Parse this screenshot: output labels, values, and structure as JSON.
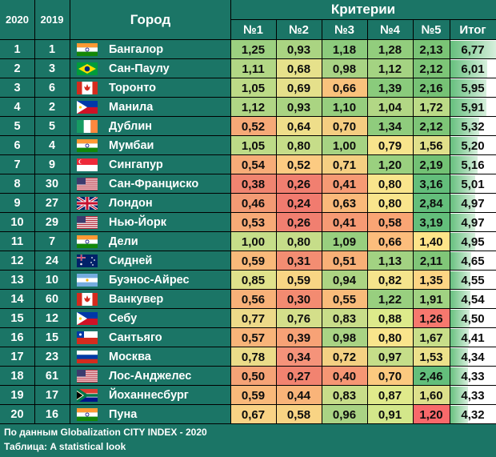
{
  "chart_data": {
    "type": "table",
    "headers": {
      "rank_2020": "2020",
      "rank_2019": "2019",
      "city": "Город",
      "criteria_group": "Критерии",
      "criteria": [
        "№1",
        "№2",
        "№3",
        "№4",
        "№5"
      ],
      "total": "Итог"
    },
    "rows": [
      {
        "r2020": "1",
        "r2019": "1",
        "flag": "india-flag",
        "city": "Бангалор",
        "c": [
          "1,25",
          "0,93",
          "1,18",
          "1,28",
          "2,13"
        ],
        "total": "6,77",
        "colors": [
          "#9cd080",
          "#aad482",
          "#8ccb7c",
          "#92cd7d",
          "#7ac476"
        ],
        "total_fill": 1.0
      },
      {
        "r2020": "2",
        "r2019": "3",
        "flag": "brazil-flag",
        "city": "Сан-Паулу",
        "c": [
          "1,11",
          "0,68",
          "0,98",
          "1,12",
          "2,12"
        ],
        "total": "6,01",
        "colors": [
          "#b2d785",
          "#e6e18b",
          "#a9d384",
          "#a4d382",
          "#7dc577"
        ],
        "total_fill": 0.81
      },
      {
        "r2020": "3",
        "r2019": "6",
        "flag": "canada-flag",
        "city": "Торонто",
        "c": [
          "1,05",
          "0,69",
          "0,66",
          "1,39",
          "2,16"
        ],
        "total": "5,95",
        "colors": [
          "#bddb87",
          "#e5e08b",
          "#f9c27c",
          "#8acb7c",
          "#76c275"
        ],
        "total_fill": 0.8
      },
      {
        "r2020": "4",
        "r2019": "2",
        "flag": "philippines-flag",
        "city": "Манила",
        "c": [
          "1,12",
          "0,93",
          "1,10",
          "1,04",
          "1,72"
        ],
        "total": "5,91",
        "colors": [
          "#b0d685",
          "#aad482",
          "#96ce7e",
          "#b2d785",
          "#bcdb87"
        ],
        "total_fill": 0.79
      },
      {
        "r2020": "5",
        "r2019": "5",
        "flag": "ireland-flag",
        "city": "Дублин",
        "c": [
          "0,52",
          "0,64",
          "0,70",
          "1,34",
          "2,12"
        ],
        "total": "5,32",
        "colors": [
          "#f6a977",
          "#efde8a",
          "#f5cd81",
          "#8fcc7d",
          "#7dc577"
        ],
        "total_fill": 0.64
      },
      {
        "r2020": "6",
        "r2019": "4",
        "flag": "india-flag",
        "city": "Мумбаи",
        "c": [
          "1,05",
          "0,80",
          "1,00",
          "0,79",
          "1,56"
        ],
        "total": "5,20",
        "colors": [
          "#bddb87",
          "#c6dd89",
          "#a6d383",
          "#f8e48c",
          "#e1e08b"
        ],
        "total_fill": 0.61
      },
      {
        "r2020": "7",
        "r2019": "9",
        "flag": "singapore-flag",
        "city": "Сингапур",
        "c": [
          "0,54",
          "0,52",
          "0,71",
          "1,20",
          "2,19"
        ],
        "total": "5,16",
        "colors": [
          "#f7ac78",
          "#fccb82",
          "#f5cf82",
          "#9ad07f",
          "#72c174"
        ],
        "total_fill": 0.6
      },
      {
        "r2020": "8",
        "r2019": "30",
        "flag": "usa-flag",
        "city": "Сан-Франциско",
        "c": [
          "0,38",
          "0,26",
          "0,41",
          "0,80",
          "3,16"
        ],
        "total": "5,01",
        "colors": [
          "#f08470",
          "#f17f70",
          "#f69a74",
          "#f9e58c",
          "#63be7b"
        ],
        "total_fill": 0.56
      },
      {
        "r2020": "9",
        "r2019": "27",
        "flag": "uk-flag",
        "city": "Лондон",
        "c": [
          "0,46",
          "0,24",
          "0,63",
          "0,80",
          "2,84"
        ],
        "total": "4,97",
        "colors": [
          "#f39a74",
          "#f17b6f",
          "#fab97a",
          "#f9e58c",
          "#63be7b"
        ],
        "total_fill": 0.55
      },
      {
        "r2020": "10",
        "r2019": "29",
        "flag": "usa-flag",
        "city": "Нью-Йорк",
        "c": [
          "0,53",
          "0,26",
          "0,41",
          "0,58",
          "3,19"
        ],
        "total": "4,97",
        "colors": [
          "#f7aa77",
          "#f17f70",
          "#f69a74",
          "#f9a574",
          "#63be7b"
        ],
        "total_fill": 0.55
      },
      {
        "r2020": "11",
        "r2019": "7",
        "flag": "india-flag",
        "city": "Дели",
        "c": [
          "1,00",
          "0,80",
          "1,09",
          "0,66",
          "1,40"
        ],
        "total": "4,95",
        "colors": [
          "#c6de89",
          "#c6dd89",
          "#98cf7f",
          "#fcbd7c",
          "#fee489"
        ],
        "total_fill": 0.55
      },
      {
        "r2020": "12",
        "r2019": "24",
        "flag": "australia-flag",
        "city": "Сидней",
        "c": [
          "0,59",
          "0,31",
          "0,51",
          "1,13",
          "2,11"
        ],
        "total": "4,65",
        "colors": [
          "#f9b97a",
          "#f38d72",
          "#f8b077",
          "#a2d282",
          "#80c678"
        ],
        "total_fill": 0.47
      },
      {
        "r2020": "13",
        "r2019": "10",
        "flag": "argentina-flag",
        "city": "Буэнос-Айрес",
        "c": [
          "0,85",
          "0,59",
          "0,94",
          "0,82",
          "1,35"
        ],
        "total": "4,55",
        "colors": [
          "#e0e28b",
          "#f8d584",
          "#acd483",
          "#f5e48c",
          "#fdd584"
        ],
        "total_fill": 0.45
      },
      {
        "r2020": "14",
        "r2019": "60",
        "flag": "canada-flag",
        "city": "Ванкувер",
        "c": [
          "0,56",
          "0,30",
          "0,55",
          "1,22",
          "1,91"
        ],
        "total": "4,54",
        "colors": [
          "#f8b178",
          "#f38b71",
          "#f9bb7a",
          "#98cf7f",
          "#a0d282"
        ],
        "total_fill": 0.44
      },
      {
        "r2020": "15",
        "r2019": "12",
        "flag": "philippines-flag",
        "city": "Себу",
        "c": [
          "0,77",
          "0,76",
          "0,83",
          "0,88",
          "1,26"
        ],
        "total": "4,50",
        "colors": [
          "#edda89",
          "#d4df8a",
          "#c8dd89",
          "#ddea8b",
          "#f7786e"
        ],
        "total_fill": 0.43
      },
      {
        "r2020": "16",
        "r2019": "15",
        "flag": "chile-flag",
        "city": "Сантьяго",
        "c": [
          "0,57",
          "0,39",
          "0,98",
          "0,80",
          "1,67"
        ],
        "total": "4,41",
        "colors": [
          "#f8b479",
          "#f7a276",
          "#a9d384",
          "#f9e58c",
          "#c8de89"
        ],
        "total_fill": 0.41
      },
      {
        "r2020": "17",
        "r2019": "23",
        "flag": "russia-flag",
        "city": "Москва",
        "c": [
          "0,78",
          "0,34",
          "0,72",
          "0,97",
          "1,53"
        ],
        "total": "4,34",
        "colors": [
          "#ebdc89",
          "#f5937a",
          "#f4d183",
          "#c5de89",
          "#ece18b"
        ],
        "total_fill": 0.39
      },
      {
        "r2020": "18",
        "r2019": "61",
        "flag": "usa-flag",
        "city": "Лос-Анджелес",
        "c": [
          "0,50",
          "0,27",
          "0,40",
          "0,70",
          "2,46"
        ],
        "total": "4,33",
        "colors": [
          "#f5a376",
          "#f28370",
          "#f69674",
          "#fcc97f",
          "#63be7b"
        ],
        "total_fill": 0.39
      },
      {
        "r2020": "19",
        "r2019": "17",
        "flag": "south-africa-flag",
        "city": "Йоханнесбург",
        "c": [
          "0,59",
          "0,44",
          "0,83",
          "0,87",
          "1,60"
        ],
        "total": "4,33",
        "colors": [
          "#f9b97a",
          "#f9b479",
          "#c8dd89",
          "#e0ea8b",
          "#dde08b"
        ],
        "total_fill": 0.39
      },
      {
        "r2020": "20",
        "r2019": "16",
        "flag": "india-flag",
        "city": "Пуна",
        "c": [
          "0,67",
          "0,58",
          "0,96",
          "0,91",
          "1,20"
        ],
        "total": "4,32",
        "colors": [
          "#f9d385",
          "#f8d484",
          "#aad384",
          "#d3e78a",
          "#f8696b"
        ],
        "total_fill": 0.39
      }
    ]
  },
  "footer": {
    "source": "По данным Globalization CITY INDEX - 2020",
    "credit": "Таблица: A statistical look"
  }
}
